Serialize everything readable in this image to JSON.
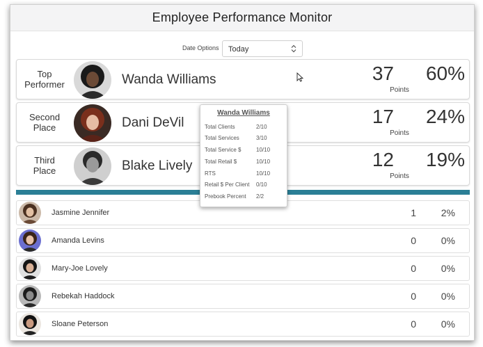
{
  "header": {
    "title": "Employee Performance Monitor"
  },
  "date_options": {
    "label": "Date Options",
    "value": "Today"
  },
  "top_performers": [
    {
      "rank_line1": "Top",
      "rank_line2": "Performer",
      "name": "Wanda Williams",
      "points": "37",
      "points_label": "Points",
      "percent": "60%"
    },
    {
      "rank_line1": "Second",
      "rank_line2": "Place",
      "name": "Dani DeVil",
      "points": "17",
      "points_label": "Points",
      "percent": "24%"
    },
    {
      "rank_line1": "Third",
      "rank_line2": "Place",
      "name": "Blake Lively",
      "points": "12",
      "points_label": "Points",
      "percent": "19%"
    }
  ],
  "employees": [
    {
      "name": "Jasmine Jennifer",
      "points": "1",
      "percent": "2%"
    },
    {
      "name": "Amanda Levins",
      "points": "0",
      "percent": "0%"
    },
    {
      "name": "Mary-Joe Lovely",
      "points": "0",
      "percent": "0%"
    },
    {
      "name": "Rebekah Haddock",
      "points": "0",
      "percent": "0%"
    },
    {
      "name": "Sloane Peterson",
      "points": "0",
      "percent": "0%"
    }
  ],
  "tooltip": {
    "title": "Wanda Williams",
    "rows": [
      {
        "label": "Total Clients",
        "value": "2/10"
      },
      {
        "label": "Total Services",
        "value": "3/10"
      },
      {
        "label": "Total Service $",
        "value": "10/10"
      },
      {
        "label": "Total Retail $",
        "value": "10/10"
      },
      {
        "label": "RTS",
        "value": "10/10"
      },
      {
        "label": "Retail $ Per Client",
        "value": "0/10"
      },
      {
        "label": "Prebook Percent",
        "value": "2/2"
      }
    ]
  },
  "icons": {
    "select_chevron": "chevron-up-down-icon",
    "cursor": "mouse-pointer-icon"
  },
  "colors": {
    "divider": "#2b7f96",
    "header_bg": "#f4f4f5"
  }
}
